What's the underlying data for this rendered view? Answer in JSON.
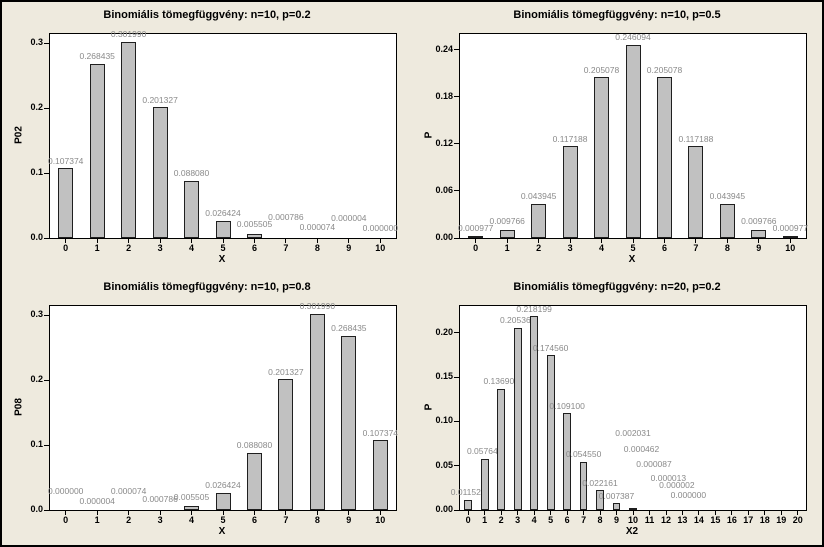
{
  "palette": {
    "background": "#EEEADE",
    "plot_background": "#FFFFFF",
    "border_color": "#000000",
    "bar_fill": "#C1C1C1",
    "bar_stroke": "#1F1F1F",
    "text_color": "#000000",
    "value_label_color": "#8A8A8A"
  },
  "chart_data": [
    {
      "type": "bar",
      "title": "Binomiális tömegfüggvény: n=10, p=0.2",
      "xlabel": "X",
      "ylabel": "P02",
      "categories": [
        0,
        1,
        2,
        3,
        4,
        5,
        6,
        7,
        8,
        9,
        10
      ],
      "values": [
        0.107374,
        0.268435,
        0.30199,
        0.201327,
        0.08808,
        0.026424,
        0.005505,
        0.000786,
        7.4e-05,
        4e-06,
        0.0
      ],
      "value_labels": [
        "0.107374",
        "0.268435",
        "0.301990",
        "0.201327",
        "0.088080",
        "0.026424",
        "0.005505",
        "0.000786",
        "0.000074",
        "0.000004",
        "0.000000"
      ],
      "ylim": [
        0,
        0.314
      ],
      "yticks": {
        "values": [
          0,
          0.1,
          0.2,
          0.3
        ],
        "labels": [
          "0.0",
          "0.1",
          "0.2",
          "0.3"
        ]
      },
      "grid": false,
      "label_raise": {
        "6": 10,
        "7": 17,
        "8": 7,
        "9": 16,
        "10": 6
      },
      "label_dx": {}
    },
    {
      "type": "bar",
      "title": "Binomiális tömegfüggvény: n=10, p=0.5",
      "xlabel": "X",
      "ylabel": "P",
      "categories": [
        0,
        1,
        2,
        3,
        4,
        5,
        6,
        7,
        8,
        9,
        10
      ],
      "values": [
        0.000977,
        0.009766,
        0.043945,
        0.117188,
        0.205078,
        0.246094,
        0.205078,
        0.117188,
        0.043945,
        0.009766,
        0.000977
      ],
      "value_labels": [
        "0.000977",
        "0.009766",
        "0.043945",
        "0.117188",
        "0.205078",
        "0.246094",
        "0.205078",
        "0.117188",
        "0.043945",
        "0.009766",
        "0.000977"
      ],
      "ylim": [
        0,
        0.26
      ],
      "yticks": {
        "values": [
          0,
          0.06,
          0.12,
          0.18,
          0.24
        ],
        "labels": [
          "0.00",
          "0.06",
          "0.12",
          "0.18",
          "0.24"
        ]
      },
      "grid": false,
      "label_raise": {
        "0": 6,
        "1": 13,
        "9": 13,
        "10": 6
      },
      "label_dx": {}
    },
    {
      "type": "bar",
      "title": "Binomiális tömegfüggvény: n=10, p=0.8",
      "xlabel": "X",
      "ylabel": "P08",
      "categories": [
        0,
        1,
        2,
        3,
        4,
        5,
        6,
        7,
        8,
        9,
        10
      ],
      "values": [
        0.0,
        4e-06,
        7.4e-05,
        0.000786,
        0.005505,
        0.026424,
        0.08808,
        0.201327,
        0.30199,
        0.268435,
        0.107374
      ],
      "value_labels": [
        "0.000000",
        "0.000004",
        "0.000074",
        "0.000786",
        "0.005505",
        "0.026424",
        "0.088080",
        "0.201327",
        "0.301990",
        "0.268435",
        "0.107374"
      ],
      "ylim": [
        0,
        0.314
      ],
      "yticks": {
        "values": [
          0,
          0.1,
          0.2,
          0.3
        ],
        "labels": [
          "0.0",
          "0.1",
          "0.2",
          "0.3"
        ]
      },
      "grid": false,
      "label_raise": {
        "0": 15,
        "1": 5,
        "2": 15,
        "3": 7,
        "4": 9
      },
      "label_dx": {}
    },
    {
      "type": "bar",
      "title": "Binomiális tömegfüggvény: n=20, p=0.2",
      "xlabel": "X2",
      "ylabel": "P",
      "categories": [
        0,
        1,
        2,
        3,
        4,
        5,
        6,
        7,
        8,
        9,
        10,
        11,
        12,
        13,
        14,
        15,
        16,
        17,
        18,
        19,
        20
      ],
      "values": [
        0.011529,
        0.057646,
        0.136909,
        0.205364,
        0.218199,
        0.17456,
        0.1091,
        0.05455,
        0.022161,
        0.007387,
        0.002031,
        0.000462,
        8.7e-05,
        1.3e-05,
        2e-06,
        0.0,
        0,
        0,
        0,
        0,
        0
      ],
      "value_labels": [
        "0.011529",
        "0.057646",
        "0.136909",
        "0.205364",
        "0.218199",
        "0.174560",
        "0.109100",
        "0.054550",
        "0.022161",
        "0.007387",
        "0.002031",
        "0.000462",
        "0.000087",
        "0.000013",
        "0.000002",
        "0.000000"
      ],
      "ylim": [
        0,
        0.23
      ],
      "yticks": {
        "values": [
          0,
          0.05,
          0.1,
          0.15,
          0.2
        ],
        "labels": [
          "0.00",
          "0.05",
          "0.10",
          "0.15",
          "0.20"
        ]
      },
      "grid": false,
      "label_raise": {
        "10": 73,
        "11": 57,
        "12": 42,
        "13": 28,
        "14": 21,
        "15": 11
      },
      "label_dx": {
        "11": -8,
        "12": -12,
        "13": -14,
        "14": -22,
        "15": -27
      }
    }
  ]
}
